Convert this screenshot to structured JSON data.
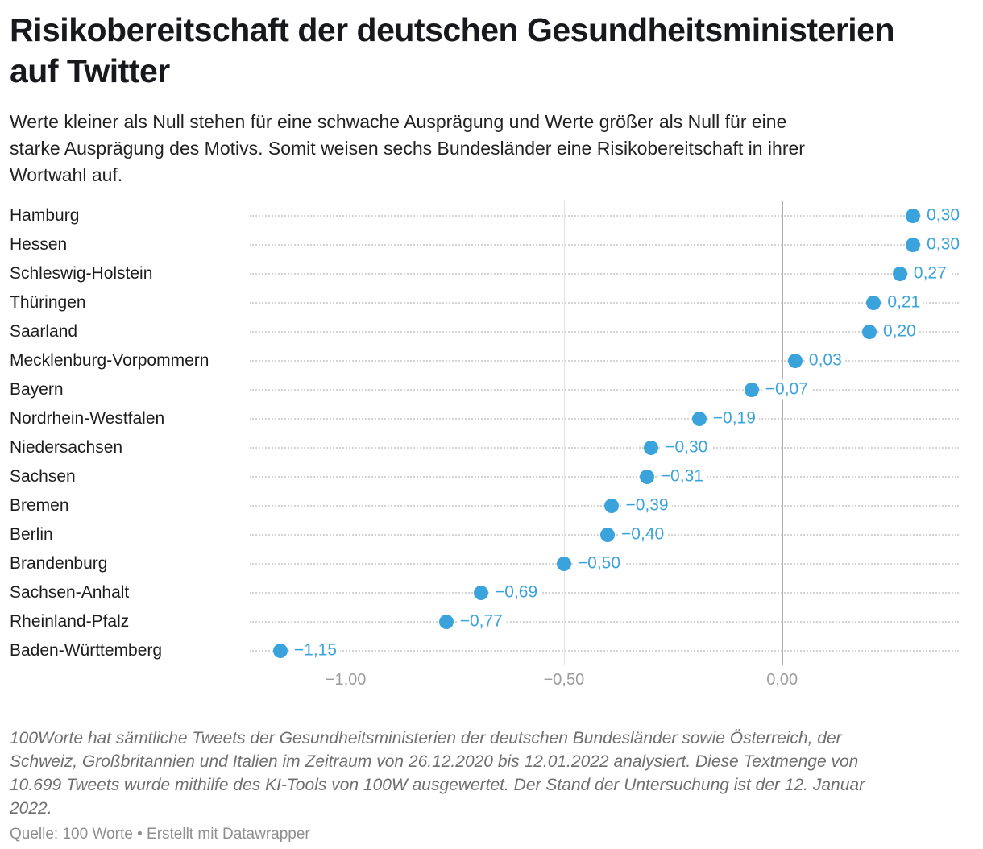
{
  "header": {
    "title_lines": [
      "Risikobereitschaft der deutschen Gesundheitsministerien",
      "auf Twitter"
    ],
    "description_lines": [
      "Werte kleiner als Null stehen für eine schwache Ausprägung und Werte größer als Null für eine",
      "starke Ausprägung des Motivs. Somit weisen sechs Bundesländer eine Risikobereitschaft in ihrer",
      "Wortwahl auf."
    ]
  },
  "chart_data": {
    "type": "scatter",
    "title": "Risikobereitschaft der deutschen Gesundheitsministerien auf Twitter",
    "subtitle": "Werte kleiner als Null stehen für eine schwache Ausprägung und Werte größer als Null für eine starke Ausprägung des Motivs. Somit weisen sechs Bundesländer eine Risikobereitschaft in ihrer Wortwahl auf.",
    "points": [
      {
        "category": "Hamburg",
        "value": 0.3,
        "label": "0,30"
      },
      {
        "category": "Hessen",
        "value": 0.3,
        "label": "0,30"
      },
      {
        "category": "Schleswig-Holstein",
        "value": 0.27,
        "label": "0,27"
      },
      {
        "category": "Thüringen",
        "value": 0.21,
        "label": "0,21"
      },
      {
        "category": "Saarland",
        "value": 0.2,
        "label": "0,20"
      },
      {
        "category": "Mecklenburg-Vorpommern",
        "value": 0.03,
        "label": "0,03"
      },
      {
        "category": "Bayern",
        "value": -0.07,
        "label": "−0,07"
      },
      {
        "category": "Nordrhein-Westfalen",
        "value": -0.19,
        "label": "−0,19"
      },
      {
        "category": "Niedersachsen",
        "value": -0.3,
        "label": "−0,30"
      },
      {
        "category": "Sachsen",
        "value": -0.31,
        "label": "−0,31"
      },
      {
        "category": "Bremen",
        "value": -0.39,
        "label": "−0,39"
      },
      {
        "category": "Berlin",
        "value": -0.4,
        "label": "−0,40"
      },
      {
        "category": "Brandenburg",
        "value": -0.5,
        "label": "−0,50"
      },
      {
        "category": "Sachsen-Anhalt",
        "value": -0.69,
        "label": "−0,69"
      },
      {
        "category": "Rheinland-Pfalz",
        "value": -0.77,
        "label": "−0,77"
      },
      {
        "category": "Baden-Württemberg",
        "value": -1.15,
        "label": "−1,15"
      }
    ],
    "x_axis": {
      "ticks": [
        -1.0,
        -0.5,
        0.0
      ],
      "tick_labels": [
        "−1,00",
        "−0,50",
        "0,00"
      ],
      "range": [
        -1.22,
        0.405
      ]
    },
    "grid": "vertical gridlines with dotted row leader lines",
    "legend": "none",
    "colors": {
      "dot": "#3BA3DC",
      "value_label": "#3BA3DC",
      "gridline": "#e2e2e2",
      "zero_line": "#b0b0b0",
      "leader_dots": "#d4d4d4"
    }
  },
  "footer": {
    "notes_lines": [
      "100Worte hat sämtliche Tweets der Gesundheitsministerien der deutschen Bundesländer sowie Österreich, der",
      "Schweiz, Großbritannien und Italien im Zeitraum von 26.12.2020 bis 12.01.2022 analysiert. Diese Textmenge von",
      "10.699 Tweets wurde mithilfe des KI-Tools von 100W ausgewertet. Der Stand der Untersuchung ist der 12. Januar",
      "2022."
    ],
    "source_label": "Quelle:",
    "source_name": "100 Worte",
    "separator": "•",
    "credit": "Erstellt mit Datawrapper"
  }
}
